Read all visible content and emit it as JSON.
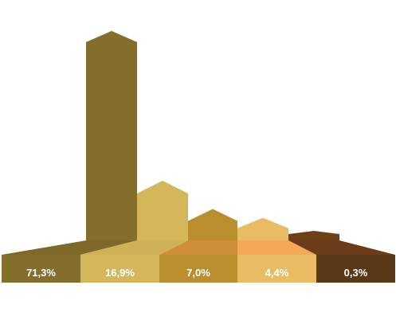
{
  "chart_data": {
    "type": "bar",
    "categories": [
      "",
      "",
      "",
      "",
      ""
    ],
    "values": [
      71.3,
      16.9,
      7.0,
      4.4,
      0.3
    ],
    "labels": [
      "71,3%",
      "16,9%",
      "7,0%",
      "4,4%",
      "0,3%"
    ],
    "colors": {
      "bars_front": [
        "#836e2b",
        "#d4b75a",
        "#b98f2d",
        "#e8bc63",
        "#6d3f16"
      ],
      "bars_top": [
        "#836e2b",
        "#d4b75a",
        "#b98f2d",
        "#e8bc63",
        "#6d3f16"
      ],
      "base_front": [
        "#836e2b",
        "#d4b75a",
        "#b98f2d",
        "#e8bc63",
        "#5b3815"
      ],
      "base_top": [
        "#7e692a",
        "#cfb157",
        "#cf8f39",
        "#f3aa56",
        "#6a3c17"
      ]
    },
    "title": "",
    "xlabel": "",
    "ylabel": "",
    "ylim": [
      0,
      75
    ],
    "legend": "none",
    "grid": false
  }
}
